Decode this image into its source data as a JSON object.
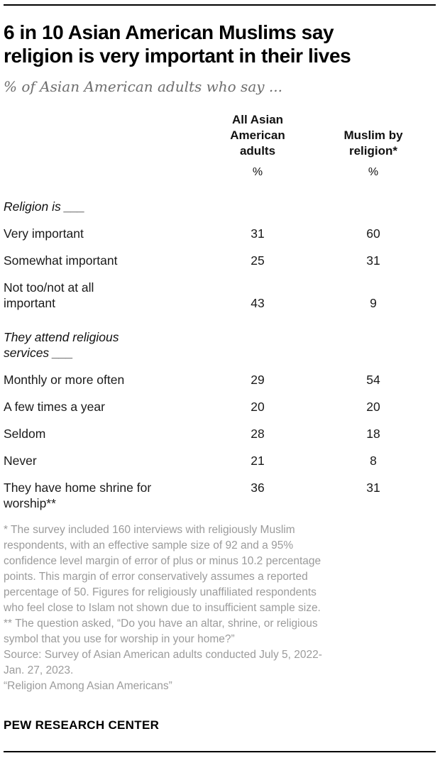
{
  "header": {
    "title": "6 in 10 Asian American Muslims say\nreligion is very important in their lives",
    "subtitle": "% of Asian American adults who say ..."
  },
  "table": {
    "columns": [
      {
        "label": "All Asian\nAmerican\nadults",
        "unit": "%"
      },
      {
        "label": "Muslim by\nreligion*",
        "unit": "%"
      }
    ],
    "rows": [
      {
        "type": "section",
        "label": "Religion is ___"
      },
      {
        "type": "data",
        "label": "Very important",
        "values": [
          "31",
          "60"
        ]
      },
      {
        "type": "data",
        "label": "Somewhat important",
        "values": [
          "25",
          "31"
        ]
      },
      {
        "type": "data",
        "label": "Not too/not at all\nimportant",
        "values": [
          "43",
          "9"
        ],
        "valign": "bottom"
      },
      {
        "type": "section",
        "label": "They attend religious\nservices ___"
      },
      {
        "type": "data",
        "label": "Monthly or more often",
        "values": [
          "29",
          "54"
        ]
      },
      {
        "type": "data",
        "label": "A few times a year",
        "values": [
          "20",
          "20"
        ]
      },
      {
        "type": "data",
        "label": "Seldom",
        "values": [
          "28",
          "18"
        ]
      },
      {
        "type": "data",
        "label": "Never",
        "values": [
          "21",
          "8"
        ]
      },
      {
        "type": "data",
        "label": "They have home shrine for\nworship**",
        "values": [
          "36",
          "31"
        ],
        "valign": "top"
      }
    ]
  },
  "notes": {
    "asterisk": "* The survey included 160 interviews with religiously Muslim\nrespondents, with an effective sample size of 92 and a 95%\nconfidence level margin of error of plus or minus 10.2 percentage\npoints. This margin of error conservatively assumes a reported\npercentage of 50. Figures for religiously unaffiliated respondents\nwho feel close to Islam not shown due to insufficient sample size.",
    "double_asterisk": "** The question asked, “Do you have an altar, shrine, or religious\nsymbol that you use for worship in your home?”",
    "source": "Source: Survey of Asian American adults conducted July 5, 2022-\nJan. 27, 2023.",
    "report": "“Religion Among Asian Americans”"
  },
  "footer": {
    "brand": "PEW RESEARCH CENTER"
  },
  "colors": {
    "text": "#1a1a1a",
    "subtitle_gray": "#6e6e6e",
    "note_gray": "#9b9b9b",
    "rule_black": "#000000"
  },
  "chart_data": {
    "type": "table",
    "title": "6 in 10 Asian American Muslims say religion is very important in their lives",
    "subtitle": "% of Asian American adults who say ...",
    "unit": "%",
    "columns": [
      "All Asian American adults",
      "Muslim by religion*"
    ],
    "sections": [
      {
        "heading": "Religion is ___",
        "rows": [
          {
            "label": "Very important",
            "values": [
              31,
              60
            ]
          },
          {
            "label": "Somewhat important",
            "values": [
              25,
              31
            ]
          },
          {
            "label": "Not too/not at all important",
            "values": [
              43,
              9
            ]
          }
        ]
      },
      {
        "heading": "They attend religious services ___",
        "rows": [
          {
            "label": "Monthly or more often",
            "values": [
              29,
              54
            ]
          },
          {
            "label": "A few times a year",
            "values": [
              20,
              20
            ]
          },
          {
            "label": "Seldom",
            "values": [
              28,
              18
            ]
          },
          {
            "label": "Never",
            "values": [
              21,
              8
            ]
          }
        ]
      },
      {
        "heading": "",
        "rows": [
          {
            "label": "They have home shrine for worship**",
            "values": [
              36,
              31
            ]
          }
        ]
      }
    ],
    "source": "Survey of Asian American adults conducted July 5, 2022-Jan. 27, 2023.",
    "report": "Religion Among Asian Americans",
    "brand": "PEW RESEARCH CENTER"
  }
}
